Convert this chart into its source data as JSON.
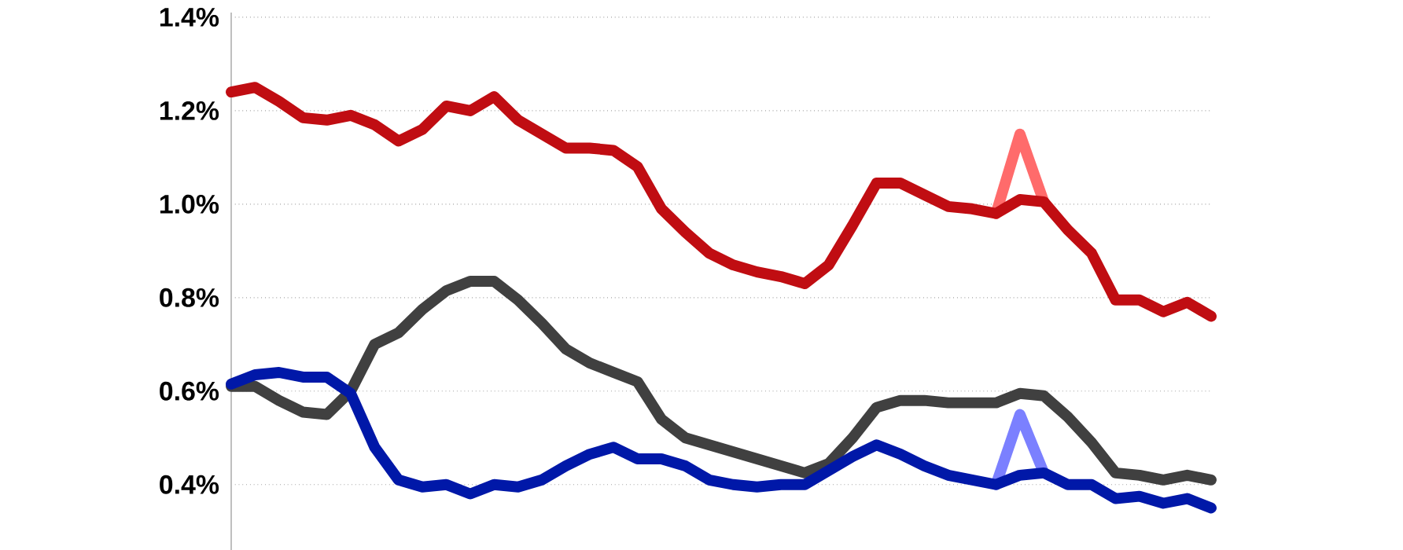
{
  "chart_data": {
    "type": "line",
    "categories": [
      null,
      null,
      null,
      null,
      null,
      null,
      null,
      null,
      null,
      null,
      null,
      null,
      null,
      null,
      null,
      null,
      null,
      null,
      null,
      null,
      null,
      null,
      null,
      null,
      null,
      null,
      null,
      null,
      null,
      null,
      null,
      null,
      null,
      null,
      null,
      null,
      null,
      null,
      null,
      null,
      null,
      null
    ],
    "series": [
      {
        "color": "#ff6b6b",
        "values": [
          null,
          null,
          null,
          null,
          null,
          null,
          null,
          null,
          null,
          null,
          null,
          null,
          null,
          null,
          null,
          null,
          null,
          null,
          null,
          null,
          null,
          null,
          null,
          null,
          null,
          null,
          null,
          null,
          null,
          null,
          null,
          null,
          0.98,
          1.15,
          1.005,
          null,
          null,
          null,
          null,
          null,
          null,
          null
        ]
      },
      {
        "color": "#7b80ff",
        "values": [
          null,
          null,
          null,
          null,
          null,
          null,
          null,
          null,
          null,
          null,
          null,
          null,
          null,
          null,
          null,
          null,
          null,
          null,
          null,
          null,
          null,
          null,
          null,
          null,
          null,
          null,
          null,
          null,
          null,
          null,
          null,
          null,
          0.4,
          0.55,
          0.425,
          null,
          null,
          null,
          null,
          null,
          null,
          null
        ]
      },
      {
        "color": "#c00d12",
        "values": [
          1.24,
          1.25,
          1.22,
          1.185,
          1.18,
          1.19,
          1.17,
          1.135,
          1.16,
          1.21,
          1.2,
          1.23,
          1.18,
          1.15,
          1.12,
          1.12,
          1.115,
          1.08,
          0.99,
          0.94,
          0.895,
          0.87,
          0.855,
          0.845,
          0.83,
          0.87,
          0.955,
          1.045,
          1.045,
          1.02,
          0.995,
          0.99,
          0.98,
          1.01,
          1.005,
          0.945,
          0.895,
          0.795,
          0.795,
          0.77,
          0.79,
          0.76
        ]
      },
      {
        "color": "#404040",
        "values": [
          0.61,
          0.61,
          0.58,
          0.555,
          0.55,
          0.6,
          0.7,
          0.725,
          0.775,
          0.815,
          0.835,
          0.835,
          0.795,
          0.745,
          0.69,
          0.66,
          0.64,
          0.62,
          0.54,
          0.5,
          0.485,
          0.47,
          0.455,
          0.44,
          0.425,
          0.445,
          0.5,
          0.565,
          0.58,
          0.58,
          0.575,
          0.575,
          0.575,
          0.595,
          0.59,
          0.545,
          0.49,
          0.425,
          0.42,
          0.41,
          0.42,
          0.41
        ]
      },
      {
        "color": "#0018a8",
        "values": [
          0.615,
          0.635,
          0.64,
          0.63,
          0.63,
          0.595,
          0.48,
          0.41,
          0.395,
          0.4,
          0.38,
          0.4,
          0.395,
          0.41,
          0.44,
          0.465,
          0.48,
          0.455,
          0.455,
          0.44,
          0.41,
          0.4,
          0.395,
          0.4,
          0.4,
          0.43,
          0.46,
          0.485,
          0.465,
          0.44,
          0.42,
          0.41,
          0.4,
          0.42,
          0.425,
          0.4,
          0.4,
          0.37,
          0.375,
          0.36,
          0.37,
          0.35
        ]
      }
    ],
    "ylim": [
      0.26,
      1.41
    ],
    "yticks": [
      {
        "value": 0.4,
        "label": "0.4%"
      },
      {
        "value": 0.6,
        "label": "0.6%"
      },
      {
        "value": 0.8,
        "label": "0.8%"
      },
      {
        "value": 1.0,
        "label": "1.0%"
      },
      {
        "value": 1.2,
        "label": "1.2%"
      },
      {
        "value": 1.4,
        "label": "1.4%"
      }
    ],
    "grid": "y",
    "tick_labels": "y",
    "marker": "none",
    "line_style": "solid"
  }
}
